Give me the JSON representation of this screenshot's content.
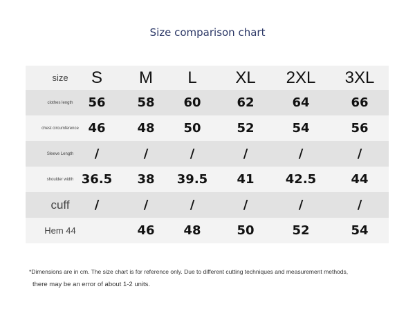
{
  "title": "Size comparison chart",
  "header": {
    "label": "size",
    "sizes": [
      "S",
      "M",
      "L",
      "XL",
      "2XL",
      "3XL"
    ]
  },
  "rows": [
    {
      "label": "clothes length",
      "values": [
        "56",
        "58",
        "60",
        "62",
        "64",
        "66"
      ]
    },
    {
      "label": "chest circumference",
      "values": [
        "46",
        "48",
        "50",
        "52",
        "54",
        "56"
      ]
    },
    {
      "label": "Sleeve Length",
      "values": [
        "/",
        "/",
        "/",
        "/",
        "/",
        "/"
      ]
    },
    {
      "label": "shoulder width",
      "values": [
        "36.5",
        "38",
        "39.5",
        "41",
        "42.5",
        "44"
      ]
    },
    {
      "label": "cuff",
      "values": [
        "/",
        "/",
        "/",
        "/",
        "/",
        "/"
      ]
    },
    {
      "label": "Hem 44",
      "values": [
        "",
        "46",
        "48",
        "50",
        "52",
        "54"
      ]
    }
  ],
  "note": {
    "line1": "*Dimensions are in cm. The size chart is for reference only. Due to different cutting techniques and measurement methods,",
    "line2": "there may be an error of about 1-2 units."
  }
}
